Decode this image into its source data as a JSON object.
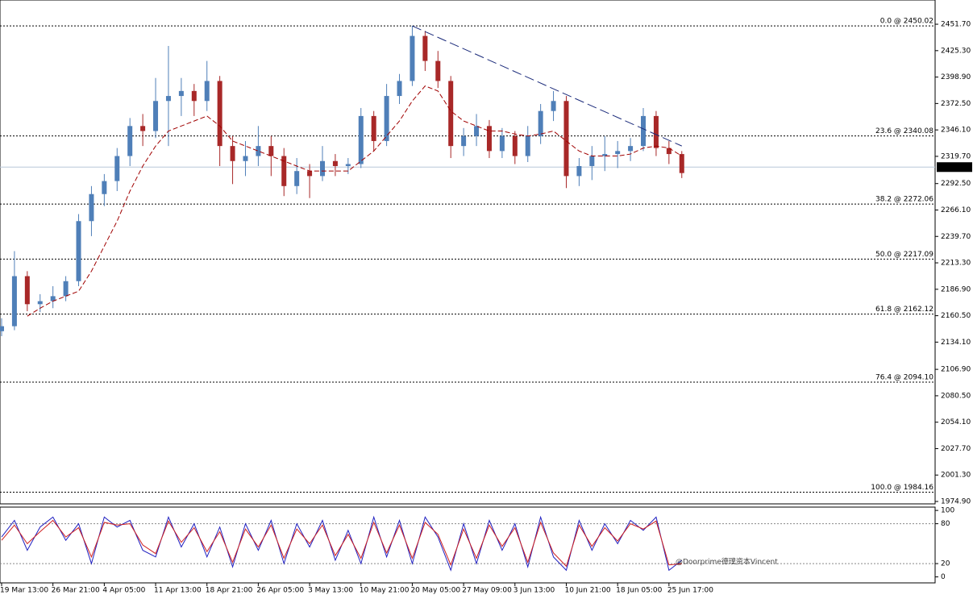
{
  "chart_data": {
    "type": "candlestick",
    "categories": [
      "19 Mar 13:00",
      null,
      null,
      null,
      "26 Mar 21:00",
      null,
      null,
      null,
      "4 Apr 05:00",
      null,
      null,
      null,
      "11 Apr 13:00",
      null,
      null,
      null,
      "18 Apr 21:00",
      null,
      null,
      null,
      "26 Apr 05:00",
      null,
      null,
      null,
      "3 May 13:00",
      null,
      null,
      null,
      "10 May 21:00",
      null,
      null,
      null,
      "20 May 05:00",
      null,
      null,
      null,
      "27 May 09:00",
      null,
      null,
      null,
      "3 Jun 13:00",
      null,
      null,
      null,
      "10 Jun 21:00",
      null,
      null,
      null,
      "18 Jun 05:00",
      null,
      null,
      null,
      "25 Jun 17:00",
      null
    ],
    "candles": [
      [
        2145,
        2158,
        2140,
        2150
      ],
      [
        2150,
        2225,
        2146,
        2200
      ],
      [
        2200,
        2205,
        2165,
        2172
      ],
      [
        2172,
        2182,
        2164,
        2175
      ],
      [
        2175,
        2190,
        2168,
        2180
      ],
      [
        2180,
        2200,
        2175,
        2195
      ],
      [
        2195,
        2262,
        2190,
        2255
      ],
      [
        2255,
        2290,
        2240,
        2282
      ],
      [
        2282,
        2302,
        2270,
        2295
      ],
      [
        2295,
        2328,
        2285,
        2320
      ],
      [
        2320,
        2358,
        2310,
        2350
      ],
      [
        2350,
        2362,
        2330,
        2345
      ],
      [
        2345,
        2398,
        2338,
        2375
      ],
      [
        2375,
        2430,
        2330,
        2380
      ],
      [
        2380,
        2398,
        2360,
        2385
      ],
      [
        2385,
        2392,
        2360,
        2375
      ],
      [
        2375,
        2415,
        2365,
        2395
      ],
      [
        2395,
        2400,
        2310,
        2330
      ],
      [
        2330,
        2340,
        2292,
        2315
      ],
      [
        2315,
        2335,
        2300,
        2320
      ],
      [
        2320,
        2350,
        2310,
        2330
      ],
      [
        2330,
        2340,
        2300,
        2320
      ],
      [
        2320,
        2328,
        2280,
        2290
      ],
      [
        2290,
        2318,
        2282,
        2305
      ],
      [
        2305,
        2312,
        2278,
        2300
      ],
      [
        2300,
        2330,
        2295,
        2315
      ],
      [
        2315,
        2322,
        2300,
        2310
      ],
      [
        2310,
        2318,
        2302,
        2312
      ],
      [
        2312,
        2368,
        2308,
        2360
      ],
      [
        2360,
        2365,
        2325,
        2335
      ],
      [
        2335,
        2392,
        2330,
        2380
      ],
      [
        2380,
        2402,
        2372,
        2395
      ],
      [
        2395,
        2450,
        2390,
        2440
      ],
      [
        2440,
        2445,
        2405,
        2415
      ],
      [
        2415,
        2425,
        2388,
        2395
      ],
      [
        2395,
        2400,
        2318,
        2330
      ],
      [
        2330,
        2348,
        2320,
        2340
      ],
      [
        2340,
        2362,
        2330,
        2350
      ],
      [
        2350,
        2356,
        2318,
        2325
      ],
      [
        2325,
        2348,
        2318,
        2340
      ],
      [
        2340,
        2345,
        2312,
        2320
      ],
      [
        2320,
        2350,
        2314,
        2340
      ],
      [
        2340,
        2372,
        2332,
        2365
      ],
      [
        2365,
        2385,
        2355,
        2375
      ],
      [
        2375,
        2380,
        2288,
        2300
      ],
      [
        2300,
        2318,
        2290,
        2310
      ],
      [
        2310,
        2330,
        2296,
        2320
      ],
      [
        2320,
        2340,
        2305,
        2322
      ],
      [
        2322,
        2335,
        2308,
        2325
      ],
      [
        2325,
        2338,
        2315,
        2330
      ],
      [
        2330,
        2368,
        2325,
        2360
      ],
      [
        2360,
        2365,
        2320,
        2328
      ],
      [
        2328,
        2335,
        2312,
        2322
      ],
      [
        2322,
        2325,
        2298,
        2303
      ]
    ],
    "up_color": "#4f7fb8",
    "down_color": "#a82828",
    "ma": [
      null,
      null,
      2160,
      2168,
      2175,
      2180,
      2185,
      2205,
      2230,
      2255,
      2285,
      2310,
      2330,
      2345,
      2350,
      2355,
      2360,
      2350,
      2335,
      2330,
      2325,
      2320,
      2315,
      2310,
      2305,
      2305,
      2305,
      2305,
      2315,
      2325,
      2340,
      2355,
      2375,
      2390,
      2385,
      2365,
      2355,
      2350,
      2345,
      2345,
      2342,
      2340,
      2342,
      2345,
      2335,
      2325,
      2320,
      2320,
      2320,
      2322,
      2328,
      2330,
      2328,
      2320
    ],
    "ma_color": "#a00000",
    "trendline": {
      "x": [
        32,
        53
      ],
      "y": [
        2450,
        2330
      ],
      "color": "#1a2a7a"
    },
    "last_price": 2308.96,
    "ylim": [
      1972.5,
      2475.9
    ],
    "yticks": [
      {
        "value": 2451.7,
        "label": "2451.70"
      },
      {
        "value": 2425.3,
        "label": "2425.30"
      },
      {
        "value": 2398.9,
        "label": "2398.90"
      },
      {
        "value": 2372.5,
        "label": "2372.50"
      },
      {
        "value": 2346.1,
        "label": "2346.10"
      },
      {
        "value": 2319.7,
        "label": "2319.70"
      },
      {
        "value": 2292.5,
        "label": "2292.50"
      },
      {
        "value": 2266.1,
        "label": "2266.10"
      },
      {
        "value": 2239.7,
        "label": "2239.70"
      },
      {
        "value": 2213.3,
        "label": "2213.30"
      },
      {
        "value": 2186.9,
        "label": "2186.90"
      },
      {
        "value": 2160.5,
        "label": "2160.50"
      },
      {
        "value": 2134.1,
        "label": "2134.10"
      },
      {
        "value": 2106.9,
        "label": "2106.90"
      },
      {
        "value": 2080.5,
        "label": "2080.50"
      },
      {
        "value": 2054.1,
        "label": "2054.10"
      },
      {
        "value": 2027.7,
        "label": "2027.70"
      },
      {
        "value": 2001.3,
        "label": "2001.30"
      },
      {
        "value": 1974.9,
        "label": "1974.90"
      }
    ],
    "fib_levels": [
      {
        "label": "0.0 @ 2450.02",
        "value": 2450.02
      },
      {
        "label": "23.6 @ 2340.08",
        "value": 2340.08
      },
      {
        "label": "38.2 @ 2272.06",
        "value": 2272.06
      },
      {
        "label": "50.0 @ 2217.09",
        "value": 2217.09
      },
      {
        "label": "61.8 @ 2162.12",
        "value": 2162.12
      },
      {
        "label": "76.4 @ 2094.10",
        "value": 2094.1
      },
      {
        "label": "100.0 @ 1984.16",
        "value": 1984.16
      }
    ],
    "stochastic": {
      "ylim": [
        -9,
        105
      ],
      "yticks": [
        100,
        80,
        20,
        0
      ],
      "levels": [
        80,
        20
      ],
      "series": [
        {
          "color": "#2020c0",
          "values": [
            60,
            85,
            40,
            75,
            90,
            55,
            80,
            20,
            90,
            75,
            85,
            40,
            30,
            90,
            45,
            80,
            30,
            75,
            15,
            80,
            40,
            85,
            20,
            80,
            45,
            85,
            25,
            70,
            20,
            90,
            30,
            85,
            20,
            90,
            60,
            10,
            80,
            20,
            85,
            40,
            80,
            15,
            90,
            30,
            10,
            85,
            40,
            80,
            50,
            85,
            70,
            90,
            10,
            25
          ]
        },
        {
          "color": "#d02020",
          "values": [
            55,
            78,
            50,
            68,
            85,
            60,
            74,
            30,
            82,
            78,
            80,
            48,
            35,
            84,
            52,
            74,
            38,
            68,
            22,
            72,
            45,
            78,
            28,
            72,
            50,
            78,
            32,
            64,
            28,
            82,
            36,
            78,
            28,
            82,
            64,
            18,
            72,
            28,
            78,
            46,
            74,
            22,
            82,
            36,
            16,
            78,
            46,
            74,
            54,
            80,
            72,
            84,
            18,
            20
          ]
        }
      ]
    },
    "watermark": "@Doorprime德璞资本Vincent"
  }
}
